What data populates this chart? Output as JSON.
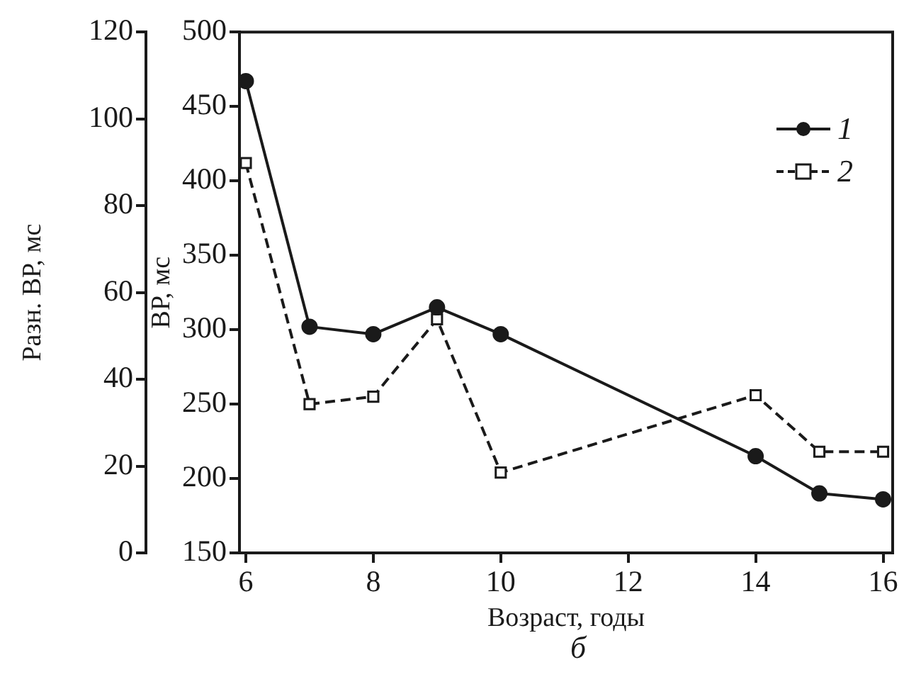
{
  "chart_data": {
    "type": "line",
    "xlabel": "Возраст, годы",
    "ylabel": "ВР, мс",
    "y2label": "Разн. ВР, мс",
    "x": [
      6,
      7,
      8,
      9,
      10,
      14,
      15,
      16
    ],
    "series": [
      {
        "name": "1",
        "color": "#1a1a1a",
        "marker": "circle",
        "line_style": "solid",
        "values": [
          467,
          302,
          297,
          315,
          297,
          215,
          190,
          186
        ]
      },
      {
        "name": "2",
        "color": "#1a1a1a",
        "marker": "square",
        "line_style": "dashed",
        "values": [
          412,
          250,
          255,
          307,
          204,
          256,
          218,
          218
        ]
      }
    ],
    "xlim": [
      5.9,
      16.15
    ],
    "xticks": [
      6,
      8,
      10,
      12,
      14,
      16
    ],
    "ylim": [
      150,
      500
    ],
    "yticks": [
      150,
      200,
      250,
      300,
      350,
      400,
      450,
      500
    ],
    "y2lim": [
      0,
      120
    ],
    "y2ticks": [
      0,
      20,
      40,
      60,
      80,
      100,
      120
    ],
    "legend": "top right",
    "grid": false,
    "annotations": [
      "б"
    ]
  }
}
